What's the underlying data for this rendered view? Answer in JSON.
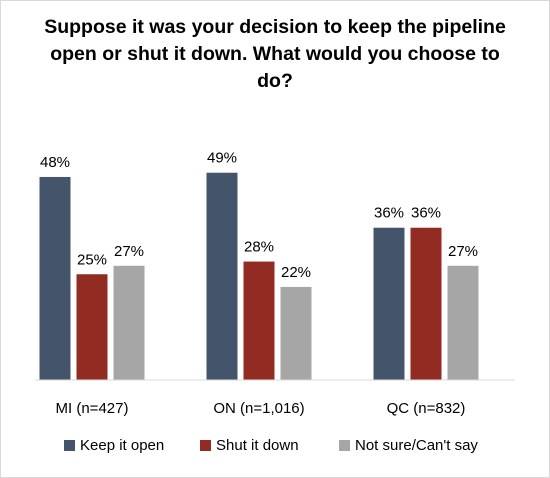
{
  "chart_data": {
    "type": "bar",
    "title": "Suppose it was your decision to keep the pipeline open or shut it down. What would you choose to do?",
    "categories": [
      "MI (n=427)",
      "ON (n=1,016)",
      "QC (n=832)"
    ],
    "series": [
      {
        "name": "Keep it open",
        "values": [
          48,
          49,
          36
        ],
        "color": "#44546a"
      },
      {
        "name": "Shut it down",
        "values": [
          25,
          28,
          36
        ],
        "color": "#922b21"
      },
      {
        "name": "Not sure/Can't say",
        "values": [
          27,
          22,
          27
        ],
        "color": "#a6a6a6"
      }
    ],
    "value_suffix": "%",
    "ylim": [
      0,
      55
    ],
    "grid": false,
    "legend_position": "bottom"
  }
}
